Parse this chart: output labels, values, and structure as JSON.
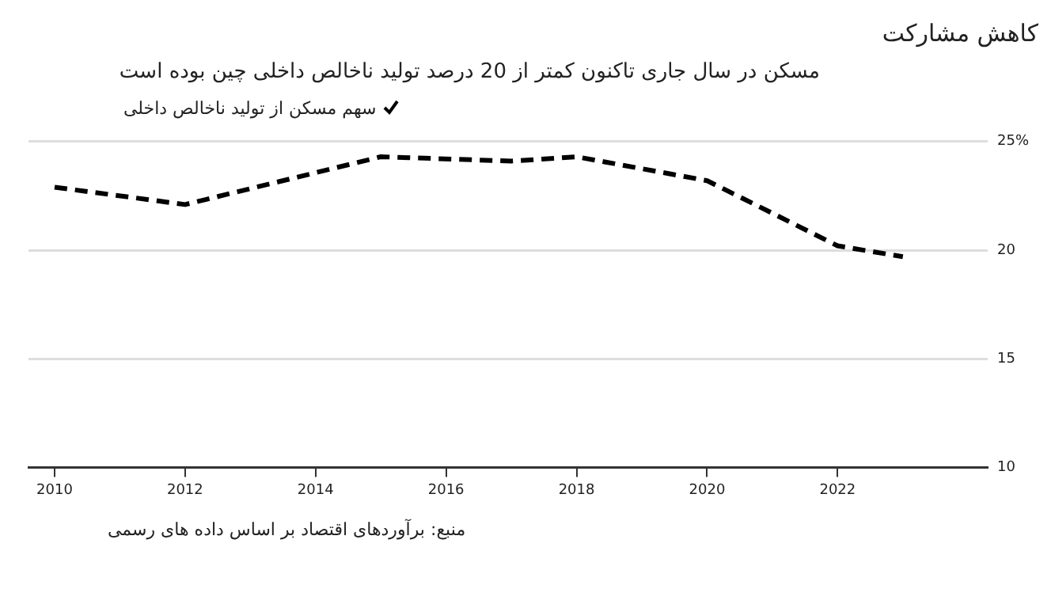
{
  "chart_data": {
    "type": "line",
    "title": "کاهش مشارکت",
    "subtitle": "مسکن در سال جاری تاکنون کمتر از 20 درصد تولید ناخالص داخلی چین بوده است",
    "series": [
      {
        "name": "سهم مسکن از تولید ناخالص داخلی",
        "color": "#000000",
        "x": [
          2010,
          2012,
          2015,
          2017,
          2018,
          2020,
          2022,
          2023
        ],
        "values": [
          22.9,
          22.1,
          24.3,
          24.1,
          24.3,
          23.2,
          20.2,
          19.7
        ]
      }
    ],
    "xlim": [
      2009.6,
      2024.3
    ],
    "xticks": [
      2010,
      2012,
      2014,
      2016,
      2018,
      2020,
      2022
    ],
    "ylim": [
      10,
      25
    ],
    "yticks": [
      10,
      15,
      20,
      {
        "value": 25,
        "label": "25%"
      }
    ],
    "grid": "y",
    "legend": "top left",
    "line_style": "dashed",
    "marker": "none",
    "annotations": [
      "منبع: برآوردهای اقتصاد بر اساس داده های رسمی"
    ]
  }
}
